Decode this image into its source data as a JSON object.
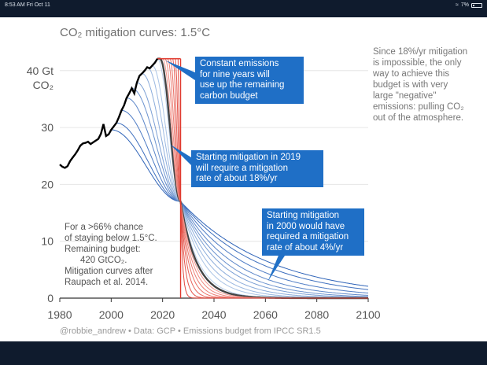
{
  "status_bar": {
    "time": "8:53 AM  Fri Oct 11",
    "battery": "7%"
  },
  "chart_data": {
    "type": "line",
    "title": "CO₂ mitigation curves: 1.5°C",
    "ylabel_line1": "40 Gt",
    "ylabel_line2": "CO₂",
    "xlim": [
      1980,
      2100
    ],
    "ylim": [
      0,
      42
    ],
    "x_ticks": [
      1980,
      2000,
      2020,
      2040,
      2060,
      2080,
      2100
    ],
    "y_ticks": [
      0,
      10,
      20,
      30
    ],
    "y_tick_labels": [
      "0",
      "10",
      "20",
      "30"
    ],
    "historical": {
      "x": [
        1980,
        1981,
        1982,
        1983,
        1984,
        1985,
        1986,
        1987,
        1988,
        1989,
        1990,
        1991,
        1992,
        1993,
        1994,
        1995,
        1996,
        1997,
        1998,
        1999,
        2000,
        2001,
        2002,
        2003,
        2004,
        2005,
        2006,
        2007,
        2008,
        2009,
        2010,
        2011,
        2012,
        2013,
        2014,
        2015,
        2016,
        2017,
        2018
      ],
      "y": [
        23.5,
        23.1,
        22.9,
        23.2,
        24.1,
        24.7,
        25.3,
        26.0,
        26.8,
        27.2,
        27.3,
        27.5,
        27.1,
        27.4,
        27.7,
        28.0,
        28.9,
        30.6,
        28.5,
        28.8,
        29.6,
        30.2,
        30.8,
        31.8,
        33.0,
        33.9,
        35.2,
        36.0,
        36.9,
        36.0,
        37.9,
        39.1,
        39.5,
        40.0,
        40.6,
        40.4,
        40.9,
        41.4,
        42.1
      ]
    },
    "curve_start": {
      "year": 2018,
      "value": 42.1
    },
    "constant_emissions": {
      "from": 2018,
      "to": 2027,
      "value": 42.1
    },
    "mitigation_start_years": [
      2000,
      2002,
      2004,
      2006,
      2008,
      2010,
      2012,
      2014,
      2016,
      2018,
      2019,
      2020,
      2021,
      2022,
      2023,
      2024,
      2025,
      2026,
      2027
    ],
    "highlight_start_year": 2019,
    "converge_point": {
      "year": 2027,
      "value": 17
    },
    "annotations": [
      "Constant emissions",
      "for nine years will",
      "use up the remaining",
      "carbon budget"
    ],
    "annotation_2019": [
      "Starting mitigation in 2019",
      "will require a mitigation",
      "rate of about 18%/yr"
    ],
    "annotation_2000": [
      "Starting mitigation",
      "in 2000 would have",
      "required a mitigation",
      "rate of about 4%/yr"
    ],
    "side_note": [
      "Since 18%/yr mitigation",
      "is impossible, the only",
      "way to achieve this",
      "budget is with very",
      "large \"negative\"",
      "emissions: pulling CO₂",
      "out of the atmosphere."
    ],
    "budget_note": [
      "For a >66% chance",
      "of staying below 1.5°C.",
      "Remaining budget:",
      "      420 GtCO₂.",
      "Mitigation curves after",
      "Raupach et al. 2014."
    ],
    "footer": "@robbie_andrew  •  Data: GCP  •  Emissions budget from IPCC SR1.5",
    "colors": {
      "historical": "#000000",
      "highlight": "#444444",
      "early_curves": "#2e63b8",
      "late_curves": "#e03a2f",
      "annotation_bg": "#1f6fc6"
    }
  }
}
